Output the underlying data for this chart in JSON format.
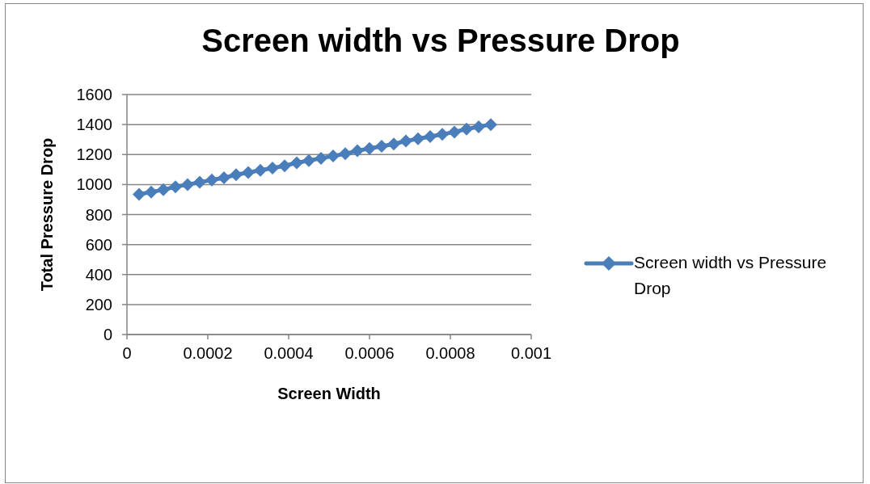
{
  "chart_data": {
    "type": "line",
    "title": "Screen width vs Pressure Drop",
    "xlabel": "Screen Width",
    "ylabel": "Total Pressure Drop",
    "x": [
      3e-05,
      6e-05,
      9e-05,
      0.00012,
      0.00015,
      0.00018,
      0.00021,
      0.00024,
      0.00027,
      0.0003,
      0.00033,
      0.00036,
      0.00039,
      0.00042,
      0.00045,
      0.00048,
      0.00051,
      0.00054,
      0.00057,
      0.0006,
      0.00063,
      0.00066,
      0.00069,
      0.00072,
      0.00075,
      0.00078,
      0.00081,
      0.00084,
      0.00087,
      0.0009
    ],
    "series": [
      {
        "name": "Screen width vs Pressure Drop",
        "color": "#4a7ebb",
        "values": [
          935,
          950,
          965,
          985,
          1000,
          1015,
          1030,
          1045,
          1065,
          1080,
          1095,
          1110,
          1125,
          1145,
          1160,
          1175,
          1190,
          1205,
          1225,
          1240,
          1255,
          1270,
          1290,
          1305,
          1320,
          1335,
          1350,
          1370,
          1385,
          1400
        ]
      }
    ],
    "xlim": [
      0,
      0.001
    ],
    "xticks": [
      0,
      0.0002,
      0.0004,
      0.0006,
      0.0008,
      0.001
    ],
    "ylim": [
      0,
      1600
    ],
    "yticks": [
      0,
      200,
      400,
      600,
      800,
      1000,
      1200,
      1400,
      1600
    ],
    "grid": "y",
    "legend": "right",
    "marker": "diamond",
    "line_style": "solid"
  }
}
